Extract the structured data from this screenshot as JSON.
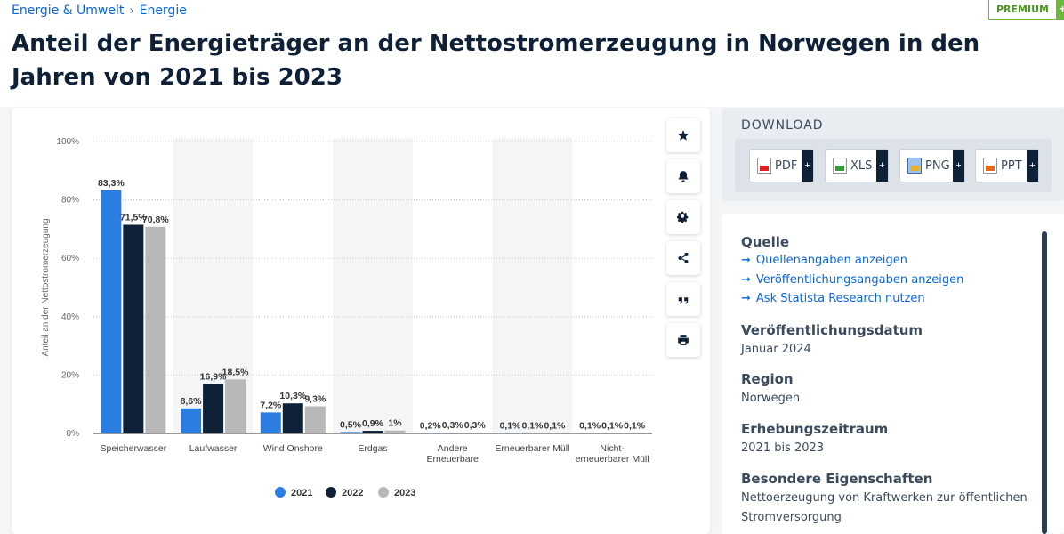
{
  "breadcrumb": {
    "items": [
      "Energie & Umwelt",
      "Energie"
    ],
    "separator": "›"
  },
  "premium": {
    "label": "PREMIUM",
    "plus": "+"
  },
  "title": "Anteil der Energieträger an der Nettostromerzeugung in Norwegen in den Jahren von 2021 bis 2023",
  "tools": [
    {
      "name": "favorite-button",
      "icon": "star-icon"
    },
    {
      "name": "notification-button",
      "icon": "bell-icon"
    },
    {
      "name": "settings-button",
      "icon": "gear-icon"
    },
    {
      "name": "share-button",
      "icon": "share-icon"
    },
    {
      "name": "cite-button",
      "icon": "quote-icon"
    },
    {
      "name": "print-button",
      "icon": "print-icon"
    }
  ],
  "download": {
    "title": "DOWNLOAD",
    "buttons": [
      {
        "label": "PDF",
        "icon": "pdf-icon",
        "plus": "+"
      },
      {
        "label": "XLS",
        "icon": "xls-icon",
        "plus": "+"
      },
      {
        "label": "PNG",
        "icon": "png-icon",
        "plus": "+"
      },
      {
        "label": "PPT",
        "icon": "ppt-icon",
        "plus": "+"
      }
    ]
  },
  "info": {
    "source_heading": "Quelle",
    "links": [
      "Quellenangaben anzeigen",
      "Veröffentlichungsangaben anzeigen",
      "Ask Statista Research nutzen"
    ],
    "pubdate_heading": "Veröffentlichungsdatum",
    "pubdate": "Januar 2024",
    "region_heading": "Region",
    "region": "Norwegen",
    "period_heading": "Erhebungszeitraum",
    "period": "2021 bis 2023",
    "special_heading": "Besondere Eigenschaften",
    "special": "Nettoerzeugung von Kraftwerken zur öffentlichen Stromversorgung"
  },
  "colors": {
    "s2021": "#2b7de1",
    "s2022": "#0f2137",
    "s2023": "#b8b8b8",
    "accent": "#0666e5"
  },
  "chart_data": {
    "type": "bar",
    "categories": [
      [
        "Speicherwasser"
      ],
      [
        "Laufwasser"
      ],
      [
        "Wind Onshore"
      ],
      [
        "Erdgas"
      ],
      [
        "Andere",
        "Erneuerbare"
      ],
      [
        "Erneuerbarer Müll"
      ],
      [
        "Nicht-",
        "erneuerbarer Müll"
      ]
    ],
    "series": [
      {
        "name": "2021",
        "values": [
          83.3,
          8.6,
          7.2,
          0.5,
          0.2,
          0.1,
          0.1
        ],
        "labels": [
          "83,3%",
          "8,6%",
          "7,2%",
          "0,5%",
          "0,2%",
          "0,1%",
          "0,1%"
        ]
      },
      {
        "name": "2022",
        "values": [
          71.5,
          16.9,
          10.3,
          0.9,
          0.3,
          0.1,
          0.1
        ],
        "labels": [
          "71,5%",
          "16,9%",
          "10,3%",
          "0,9%",
          "0,3%",
          "0,1%",
          "0,1%"
        ]
      },
      {
        "name": "2023",
        "values": [
          70.8,
          18.5,
          9.3,
          1.0,
          0.3,
          0.1,
          0.1
        ],
        "labels": [
          "70,8%",
          "18,5%",
          "9,3%",
          "1%",
          "0,3%",
          "0,1%",
          "0,1%"
        ]
      }
    ],
    "yticks": [
      "0%",
      "20%",
      "40%",
      "60%",
      "80%",
      "100%"
    ],
    "ylim": [
      0,
      100
    ],
    "ylabel": "Anteil an der Nettostromerzeugung",
    "xlabel": "",
    "legend": "bottom-center",
    "grid": true
  }
}
